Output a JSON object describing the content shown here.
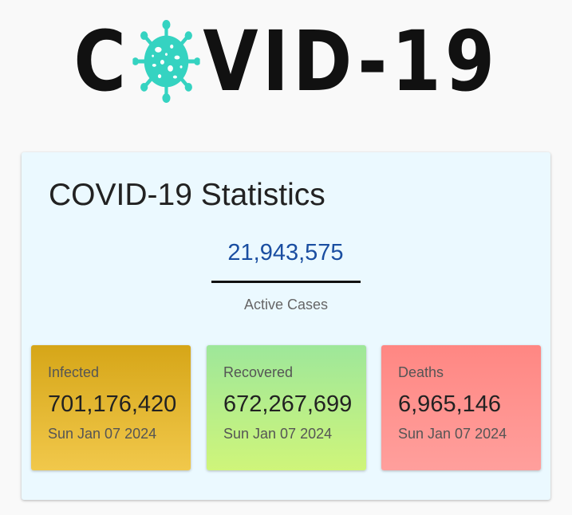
{
  "logo": {
    "before": "C",
    "after": "VID-19",
    "virus_icon": "coronavirus-icon",
    "virus_color": "#35d3c1"
  },
  "card": {
    "title": "COVID-19 Statistics",
    "active": {
      "value": "21,943,575",
      "label": "Active Cases",
      "value_color": "#1a4ea1"
    },
    "stats": {
      "infected": {
        "label": "Infected",
        "value": "701,176,420",
        "date": "Sun Jan 07 2024",
        "color": "#e4b72e"
      },
      "recovered": {
        "label": "Recovered",
        "value": "672,267,699",
        "date": "Sun Jan 07 2024",
        "color": "#b7ef8a"
      },
      "deaths": {
        "label": "Deaths",
        "value": "6,965,146",
        "date": "Sun Jan 07 2024",
        "color": "#ff9390"
      }
    }
  }
}
